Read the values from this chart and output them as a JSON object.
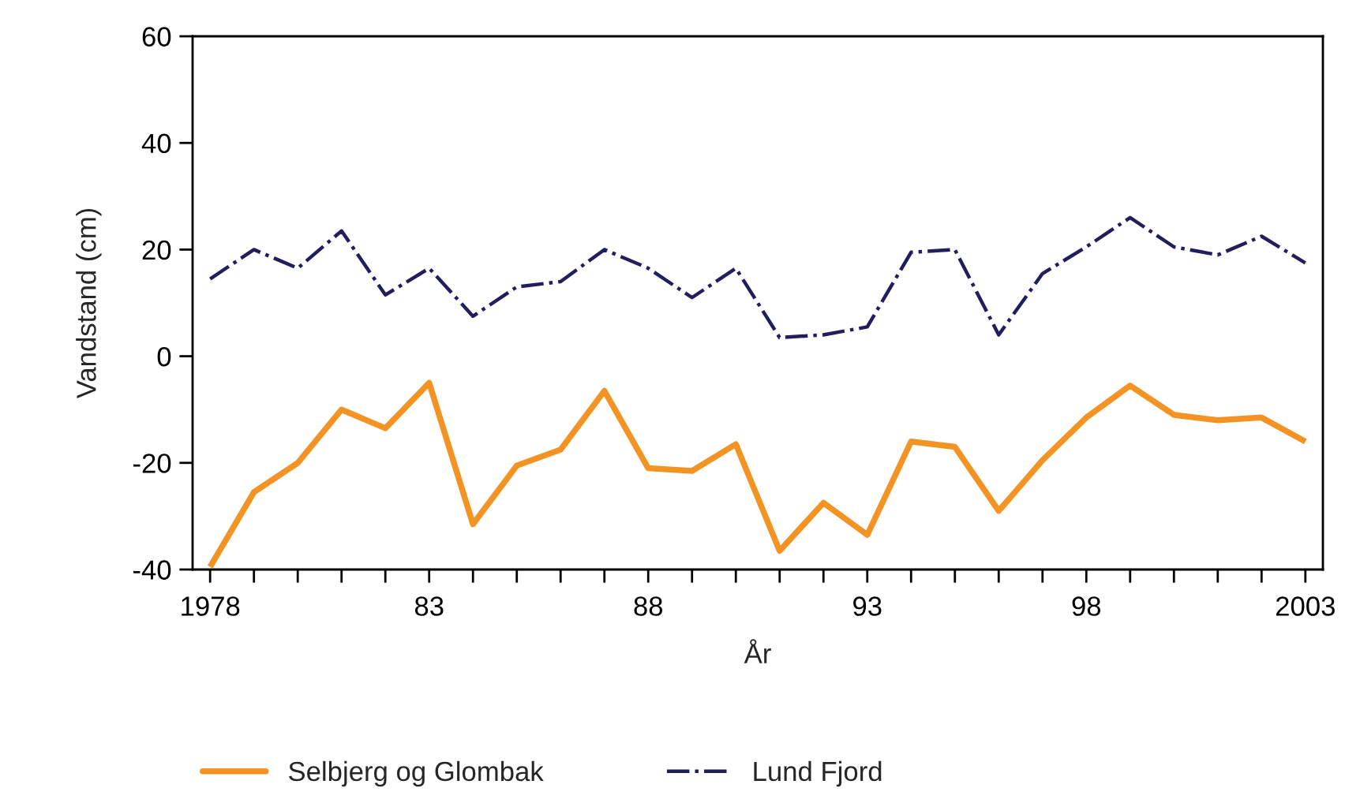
{
  "chart_data": {
    "type": "line",
    "xlabel": "År",
    "ylabel": "Vandstand (cm)",
    "x": [
      1978,
      1979,
      1980,
      1981,
      1982,
      1983,
      1984,
      1985,
      1986,
      1987,
      1988,
      1989,
      1990,
      1991,
      1992,
      1993,
      1994,
      1995,
      1996,
      1997,
      1998,
      1999,
      2000,
      2001,
      2002,
      2003
    ],
    "series": [
      {
        "name": "Selbjerg og Glombak",
        "color": "#f39323",
        "line_style": "solid",
        "values": [
          -39.5,
          -25.5,
          -20,
          -10,
          -13.5,
          -5,
          -31.5,
          -20.5,
          -17.5,
          -6.5,
          -21,
          -21.5,
          -16.5,
          -36.5,
          -27.5,
          -33.5,
          -16,
          -17,
          -29,
          -19.5,
          -11.5,
          -5.5,
          -11,
          -12,
          -11.5,
          -16
        ]
      },
      {
        "name": "Lund Fjord",
        "color": "#221e5e",
        "line_style": "dashdot",
        "values": [
          14.5,
          20,
          16.5,
          23.5,
          11.5,
          16.5,
          7.5,
          13,
          14,
          20,
          16.5,
          11,
          16.5,
          3.5,
          4,
          5.5,
          19.5,
          20,
          4,
          15.5,
          20.5,
          26,
          20.5,
          19,
          22.5,
          17.5
        ]
      }
    ],
    "xlim": [
      1977.6,
      2003.4
    ],
    "ylim": [
      -40,
      60
    ],
    "xticks": [
      1978,
      {
        "value": 1979,
        "label": null
      },
      {
        "value": 1980,
        "label": null
      },
      {
        "value": 1981,
        "label": null
      },
      {
        "value": 1982,
        "label": null
      },
      {
        "value": 1983,
        "label": "83"
      },
      {
        "value": 1984,
        "label": null
      },
      {
        "value": 1985,
        "label": null
      },
      {
        "value": 1986,
        "label": null
      },
      {
        "value": 1987,
        "label": null
      },
      {
        "value": 1988,
        "label": "88"
      },
      {
        "value": 1989,
        "label": null
      },
      {
        "value": 1990,
        "label": null
      },
      {
        "value": 1991,
        "label": null
      },
      {
        "value": 1992,
        "label": null
      },
      {
        "value": 1993,
        "label": "93"
      },
      {
        "value": 1994,
        "label": null
      },
      {
        "value": 1995,
        "label": null
      },
      {
        "value": 1996,
        "label": null
      },
      {
        "value": 1997,
        "label": null
      },
      {
        "value": 1998,
        "label": "98"
      },
      {
        "value": 1999,
        "label": null
      },
      {
        "value": 2000,
        "label": null
      },
      {
        "value": 2001,
        "label": null
      },
      {
        "value": 2002,
        "label": null
      },
      2003
    ],
    "yticks": [
      -40,
      -20,
      0,
      20,
      40,
      60
    ],
    "legend": "bottom",
    "marker": "none"
  }
}
